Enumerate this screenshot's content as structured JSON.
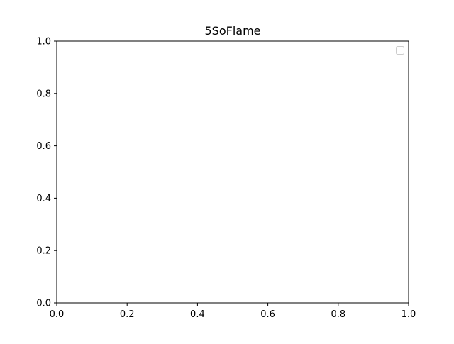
{
  "chart_data": {
    "type": "line",
    "title": "5SoFlame",
    "xlabel": "",
    "ylabel": "",
    "xlim": [
      0.0,
      1.0
    ],
    "ylim": [
      0.0,
      1.0
    ],
    "x_ticks": [
      "0.0",
      "0.2",
      "0.4",
      "0.6",
      "0.8",
      "1.0"
    ],
    "y_ticks": [
      "0.0",
      "0.2",
      "0.4",
      "0.6",
      "0.8",
      "1.0"
    ],
    "series": [],
    "grid": false,
    "legend": {
      "placement": "top-right",
      "entries": []
    }
  }
}
